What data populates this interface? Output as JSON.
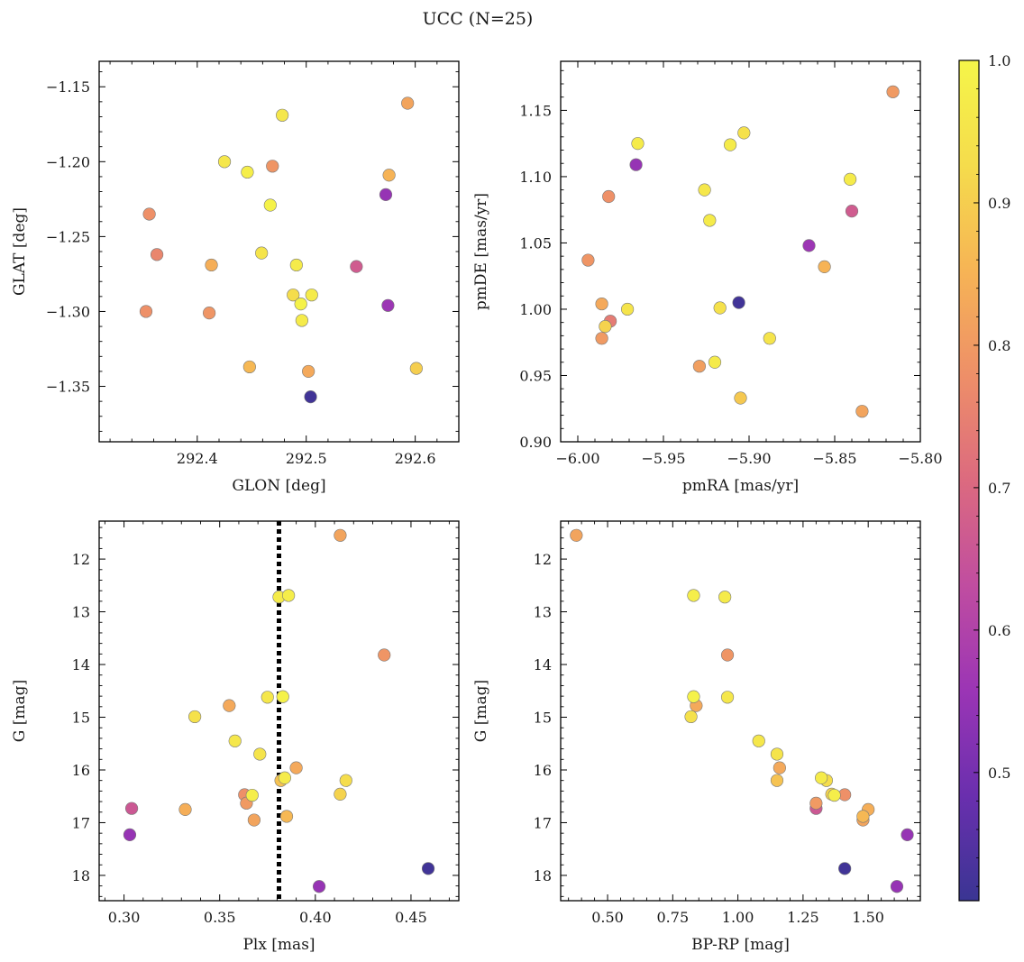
{
  "figure": {
    "title": "UCC (N=25)"
  },
  "colormap": {
    "name": "plasma",
    "stops": [
      "#3a3593",
      "#6a2fae",
      "#9b35b5",
      "#c04da0",
      "#dc6a7f",
      "#ee8f68",
      "#f6b455",
      "#f5dc4c",
      "#f5f549"
    ],
    "range": [
      0.41,
      1.0
    ],
    "ticks": [
      "0.5",
      "0.6",
      "0.7",
      "0.8",
      "0.9",
      "1.0"
    ],
    "tick_values": [
      0.5,
      0.6,
      0.7,
      0.8,
      0.9,
      1.0
    ]
  },
  "chart_data": [
    {
      "type": "scatter",
      "xlabel": "GLON [deg]",
      "ylabel": "GLAT [deg]",
      "xlim": [
        292.31,
        292.64
      ],
      "ylim": [
        -1.387,
        -1.133
      ],
      "y_inverted": false,
      "xticks": [
        292.4,
        292.5,
        292.6
      ],
      "xtick_labels": [
        "292.4",
        "292.5",
        "292.6"
      ],
      "yticks": [
        -1.15,
        -1.2,
        -1.25,
        -1.3,
        -1.35
      ],
      "ytick_labels": [
        "−1.15",
        "−1.20",
        "−1.25",
        "−1.30",
        "−1.35"
      ],
      "points": [
        {
          "x": 292.356,
          "y": -1.235,
          "c": 0.78
        },
        {
          "x": 292.363,
          "y": -1.262,
          "c": 0.76
        },
        {
          "x": 292.353,
          "y": -1.3,
          "c": 0.78
        },
        {
          "x": 292.413,
          "y": -1.269,
          "c": 0.84
        },
        {
          "x": 292.411,
          "y": -1.301,
          "c": 0.79
        },
        {
          "x": 292.425,
          "y": -1.2,
          "c": 0.96
        },
        {
          "x": 292.446,
          "y": -1.207,
          "c": 0.98
        },
        {
          "x": 292.448,
          "y": -1.337,
          "c": 0.86
        },
        {
          "x": 292.459,
          "y": -1.261,
          "c": 0.95
        },
        {
          "x": 292.467,
          "y": -1.229,
          "c": 0.99
        },
        {
          "x": 292.469,
          "y": -1.203,
          "c": 0.79
        },
        {
          "x": 292.478,
          "y": -1.169,
          "c": 0.96
        },
        {
          "x": 292.488,
          "y": -1.289,
          "c": 0.93
        },
        {
          "x": 292.491,
          "y": -1.269,
          "c": 0.97
        },
        {
          "x": 292.495,
          "y": -1.295,
          "c": 0.99
        },
        {
          "x": 292.496,
          "y": -1.306,
          "c": 0.97
        },
        {
          "x": 292.502,
          "y": -1.34,
          "c": 0.83
        },
        {
          "x": 292.505,
          "y": -1.289,
          "c": 0.97
        },
        {
          "x": 292.504,
          "y": -1.357,
          "c": 0.42
        },
        {
          "x": 292.546,
          "y": -1.27,
          "c": 0.67
        },
        {
          "x": 292.573,
          "y": -1.222,
          "c": 0.55
        },
        {
          "x": 292.575,
          "y": -1.296,
          "c": 0.56
        },
        {
          "x": 292.576,
          "y": -1.209,
          "c": 0.85
        },
        {
          "x": 292.593,
          "y": -1.161,
          "c": 0.82
        },
        {
          "x": 292.601,
          "y": -1.338,
          "c": 0.9
        }
      ]
    },
    {
      "type": "scatter",
      "xlabel": "pmRA [mas/yr]",
      "ylabel": "pmDE [mas/yr]",
      "xlim": [
        -6.01,
        -5.8
      ],
      "ylim": [
        0.9,
        1.187
      ],
      "y_inverted": false,
      "xticks": [
        -6.0,
        -5.95,
        -5.9,
        -5.85,
        -5.8
      ],
      "xtick_labels": [
        "−6.00",
        "−5.95",
        "−5.90",
        "−5.85",
        "−5.80"
      ],
      "yticks": [
        0.9,
        0.95,
        1.0,
        1.05,
        1.1,
        1.15
      ],
      "ytick_labels": [
        "0.90",
        "0.95",
        "1.00",
        "1.05",
        "1.10",
        "1.15"
      ],
      "points": [
        {
          "x": -5.994,
          "y": 1.037,
          "c": 0.79
        },
        {
          "x": -5.986,
          "y": 1.004,
          "c": 0.83
        },
        {
          "x": -5.986,
          "y": 0.978,
          "c": 0.8
        },
        {
          "x": -5.984,
          "y": 0.987,
          "c": 0.91
        },
        {
          "x": -5.982,
          "y": 1.085,
          "c": 0.78
        },
        {
          "x": -5.981,
          "y": 0.991,
          "c": 0.74
        },
        {
          "x": -5.971,
          "y": 1.0,
          "c": 0.95
        },
        {
          "x": -5.965,
          "y": 1.125,
          "c": 0.97
        },
        {
          "x": -5.966,
          "y": 1.109,
          "c": 0.55
        },
        {
          "x": -5.929,
          "y": 0.957,
          "c": 0.81
        },
        {
          "x": -5.926,
          "y": 1.09,
          "c": 0.96
        },
        {
          "x": -5.923,
          "y": 1.067,
          "c": 0.97
        },
        {
          "x": -5.92,
          "y": 0.96,
          "c": 0.97
        },
        {
          "x": -5.917,
          "y": 1.001,
          "c": 0.94
        },
        {
          "x": -5.911,
          "y": 1.124,
          "c": 0.97
        },
        {
          "x": -5.906,
          "y": 1.005,
          "c": 0.42
        },
        {
          "x": -5.905,
          "y": 0.933,
          "c": 0.89
        },
        {
          "x": -5.903,
          "y": 1.133,
          "c": 0.94
        },
        {
          "x": -5.888,
          "y": 0.978,
          "c": 0.95
        },
        {
          "x": -5.865,
          "y": 1.048,
          "c": 0.56
        },
        {
          "x": -5.856,
          "y": 1.032,
          "c": 0.85
        },
        {
          "x": -5.841,
          "y": 1.098,
          "c": 0.97
        },
        {
          "x": -5.84,
          "y": 1.074,
          "c": 0.67
        },
        {
          "x": -5.834,
          "y": 0.923,
          "c": 0.82
        },
        {
          "x": -5.816,
          "y": 1.164,
          "c": 0.8
        }
      ]
    },
    {
      "type": "scatter",
      "xlabel": "Plx [mas]",
      "ylabel": "G [mag]",
      "xlim": [
        0.287,
        0.475
      ],
      "ylim": [
        18.48,
        11.28
      ],
      "y_inverted": true,
      "xticks": [
        0.3,
        0.35,
        0.4,
        0.45
      ],
      "xtick_labels": [
        "0.30",
        "0.35",
        "0.40",
        "0.45"
      ],
      "yticks": [
        12,
        13,
        14,
        15,
        16,
        17,
        18
      ],
      "ytick_labels": [
        "12",
        "13",
        "14",
        "15",
        "16",
        "17",
        "18"
      ],
      "vline": 0.381,
      "points": [
        {
          "x": 0.303,
          "y": 17.23,
          "c": 0.55
        },
        {
          "x": 0.304,
          "y": 16.73,
          "c": 0.66
        },
        {
          "x": 0.332,
          "y": 16.75,
          "c": 0.84
        },
        {
          "x": 0.337,
          "y": 14.99,
          "c": 0.94
        },
        {
          "x": 0.355,
          "y": 14.78,
          "c": 0.83
        },
        {
          "x": 0.358,
          "y": 15.45,
          "c": 0.96
        },
        {
          "x": 0.363,
          "y": 16.47,
          "c": 0.78
        },
        {
          "x": 0.364,
          "y": 16.63,
          "c": 0.8
        },
        {
          "x": 0.367,
          "y": 16.48,
          "c": 0.98
        },
        {
          "x": 0.368,
          "y": 16.95,
          "c": 0.82
        },
        {
          "x": 0.371,
          "y": 15.7,
          "c": 0.95
        },
        {
          "x": 0.375,
          "y": 14.62,
          "c": 0.96
        },
        {
          "x": 0.381,
          "y": 12.72,
          "c": 0.97
        },
        {
          "x": 0.382,
          "y": 16.2,
          "c": 0.88
        },
        {
          "x": 0.383,
          "y": 14.61,
          "c": 0.99
        },
        {
          "x": 0.384,
          "y": 16.15,
          "c": 0.97
        },
        {
          "x": 0.385,
          "y": 16.88,
          "c": 0.86
        },
        {
          "x": 0.386,
          "y": 12.69,
          "c": 0.98
        },
        {
          "x": 0.39,
          "y": 15.96,
          "c": 0.83
        },
        {
          "x": 0.402,
          "y": 18.21,
          "c": 0.55
        },
        {
          "x": 0.413,
          "y": 11.55,
          "c": 0.82
        },
        {
          "x": 0.413,
          "y": 16.46,
          "c": 0.91
        },
        {
          "x": 0.416,
          "y": 16.2,
          "c": 0.93
        },
        {
          "x": 0.436,
          "y": 13.82,
          "c": 0.79
        },
        {
          "x": 0.459,
          "y": 17.87,
          "c": 0.42
        }
      ]
    },
    {
      "type": "scatter",
      "xlabel": "BP-RP [mag]",
      "ylabel": "G [mag]",
      "xlim": [
        0.32,
        1.7
      ],
      "ylim": [
        18.48,
        11.28
      ],
      "y_inverted": true,
      "xticks": [
        0.5,
        0.75,
        1.0,
        1.25,
        1.5
      ],
      "xtick_labels": [
        "0.50",
        "0.75",
        "1.00",
        "1.25",
        "1.50"
      ],
      "yticks": [
        12,
        13,
        14,
        15,
        16,
        17,
        18
      ],
      "ytick_labels": [
        "12",
        "13",
        "14",
        "15",
        "16",
        "17",
        "18"
      ],
      "points": [
        {
          "x": 0.38,
          "y": 11.55,
          "c": 0.82
        },
        {
          "x": 0.83,
          "y": 12.69,
          "c": 0.98
        },
        {
          "x": 0.95,
          "y": 12.72,
          "c": 0.97
        },
        {
          "x": 0.96,
          "y": 13.82,
          "c": 0.79
        },
        {
          "x": 0.83,
          "y": 14.61,
          "c": 0.99
        },
        {
          "x": 0.96,
          "y": 14.62,
          "c": 0.96
        },
        {
          "x": 0.84,
          "y": 14.78,
          "c": 0.83
        },
        {
          "x": 0.82,
          "y": 14.99,
          "c": 0.94
        },
        {
          "x": 1.08,
          "y": 15.45,
          "c": 0.96
        },
        {
          "x": 1.15,
          "y": 15.7,
          "c": 0.95
        },
        {
          "x": 1.16,
          "y": 15.96,
          "c": 0.83
        },
        {
          "x": 1.15,
          "y": 16.2,
          "c": 0.88
        },
        {
          "x": 1.32,
          "y": 16.15,
          "c": 0.97
        },
        {
          "x": 1.34,
          "y": 16.2,
          "c": 0.93
        },
        {
          "x": 1.36,
          "y": 16.46,
          "c": 0.91
        },
        {
          "x": 1.37,
          "y": 16.48,
          "c": 0.98
        },
        {
          "x": 1.41,
          "y": 16.47,
          "c": 0.78
        },
        {
          "x": 1.3,
          "y": 16.63,
          "c": 0.8
        },
        {
          "x": 1.3,
          "y": 16.73,
          "c": 0.66
        },
        {
          "x": 1.5,
          "y": 16.75,
          "c": 0.84
        },
        {
          "x": 1.48,
          "y": 16.88,
          "c": 0.86
        },
        {
          "x": 1.48,
          "y": 16.95,
          "c": 0.82
        },
        {
          "x": 1.65,
          "y": 17.23,
          "c": 0.55
        },
        {
          "x": 1.41,
          "y": 17.87,
          "c": 0.42
        },
        {
          "x": 1.61,
          "y": 18.21,
          "c": 0.55
        }
      ]
    }
  ]
}
